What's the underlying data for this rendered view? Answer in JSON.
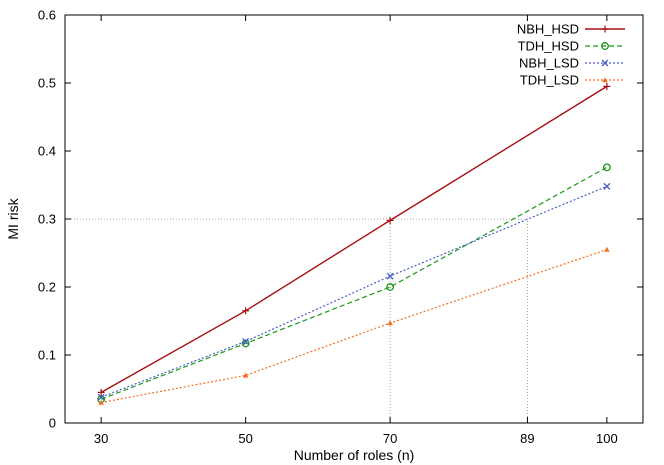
{
  "chart_data": {
    "type": "line",
    "xlabel": "Number of roles (n)",
    "ylabel": "MI risk",
    "xlim": [
      25,
      105
    ],
    "ylim": [
      0,
      0.6
    ],
    "x_ticks": [
      30,
      50,
      70,
      89,
      100
    ],
    "y_ticks": [
      0,
      0.1,
      0.2,
      0.3,
      0.4,
      0.5,
      0.6
    ],
    "x": [
      30,
      50,
      70,
      100
    ],
    "grid": false,
    "legend_position": "top-right",
    "series": [
      {
        "name": "NBH_HSD",
        "values": [
          0.045,
          0.165,
          0.298,
          0.495
        ],
        "color": "#a50f15",
        "marker": "plus",
        "dash": "solid"
      },
      {
        "name": "TDH_HSD",
        "values": [
          0.035,
          0.117,
          0.2,
          0.376
        ],
        "color": "#1a9a1a",
        "marker": "circle",
        "dash": "dashed"
      },
      {
        "name": "NBH_LSD",
        "values": [
          0.038,
          0.12,
          0.216,
          0.348
        ],
        "color": "#4a5fc1",
        "marker": "cross",
        "dash": "dotted"
      },
      {
        "name": "TDH_LSD",
        "values": [
          0.03,
          0.07,
          0.147,
          0.255
        ],
        "color": "#f0701f",
        "marker": "triangle",
        "dash": "dotted"
      }
    ],
    "annotations": {
      "reference_lines": [
        {
          "type": "vertical",
          "x": 70,
          "y_to": 0.298
        },
        {
          "type": "vertical",
          "x": 89,
          "y_to": 0.3
        },
        {
          "type": "horizontal",
          "y": 0.3,
          "x_to": 89
        }
      ]
    }
  }
}
